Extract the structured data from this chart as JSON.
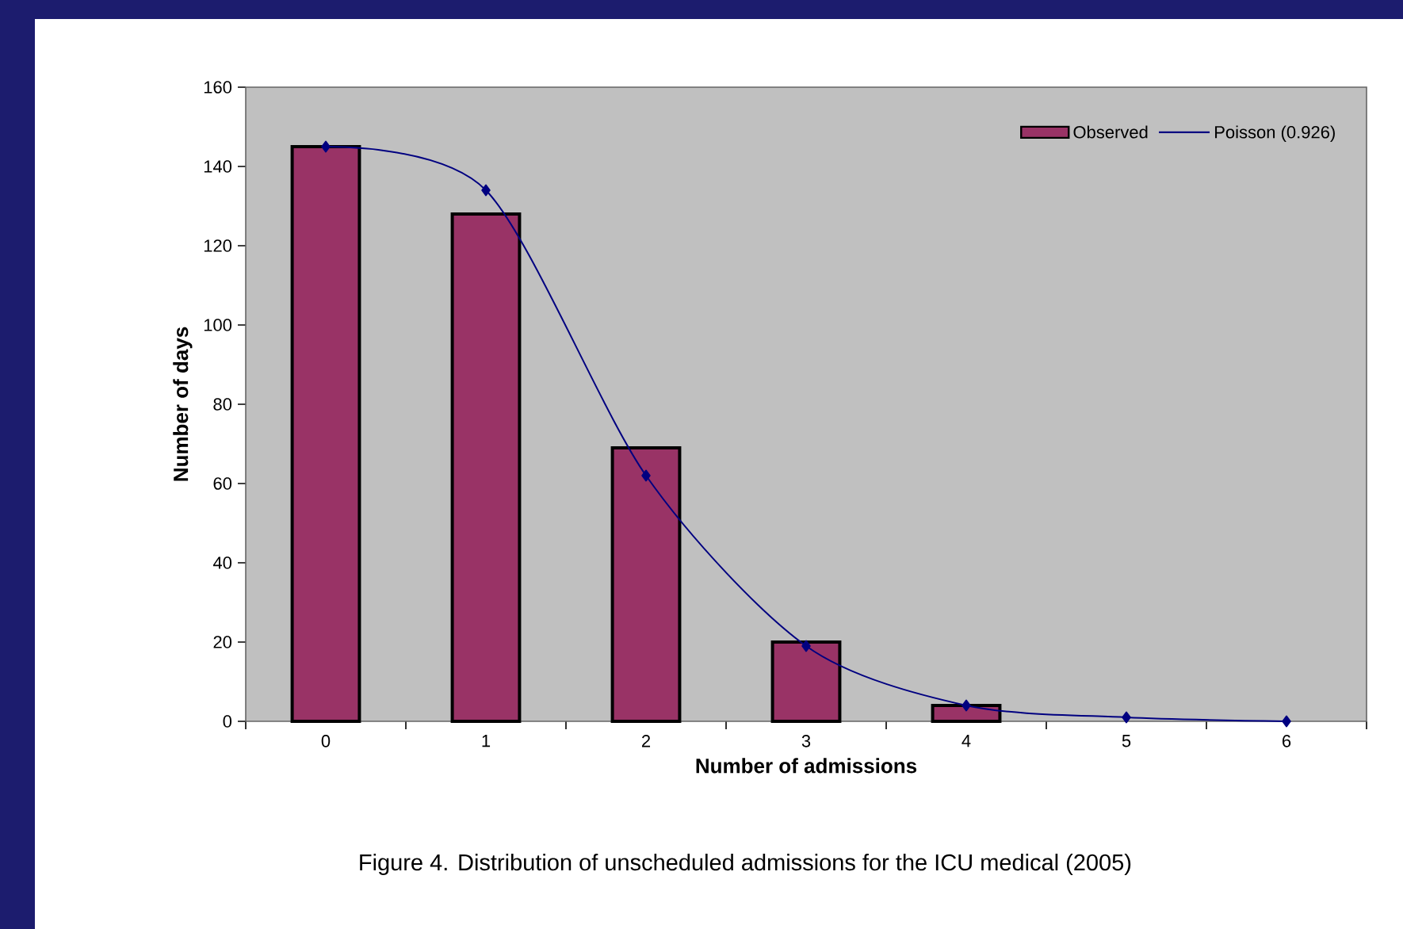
{
  "chart_data": {
    "type": "bar",
    "xlabel": "Number of admissions",
    "ylabel": "Number of days",
    "annotations": [
      "Figure 4.  Distribution of unscheduled admissions for the ICU medical (2005)"
    ],
    "categories": [
      "0",
      "1",
      "2",
      "3",
      "4",
      "5",
      "6"
    ],
    "series": [
      {
        "name": "Observed",
        "color": "#993366",
        "values": [
          145,
          128,
          69,
          20,
          4,
          null,
          null
        ]
      },
      {
        "name": "Poisson (0.926)",
        "type": "line",
        "color": "#000080",
        "marker": "diamond",
        "values": [
          145,
          134,
          62,
          19,
          4,
          1,
          0
        ]
      }
    ],
    "ylim": [
      0,
      160
    ],
    "yticks": [
      0,
      20,
      40,
      60,
      80,
      100,
      120,
      140,
      160
    ],
    "legend": "top right",
    "grid": false
  }
}
